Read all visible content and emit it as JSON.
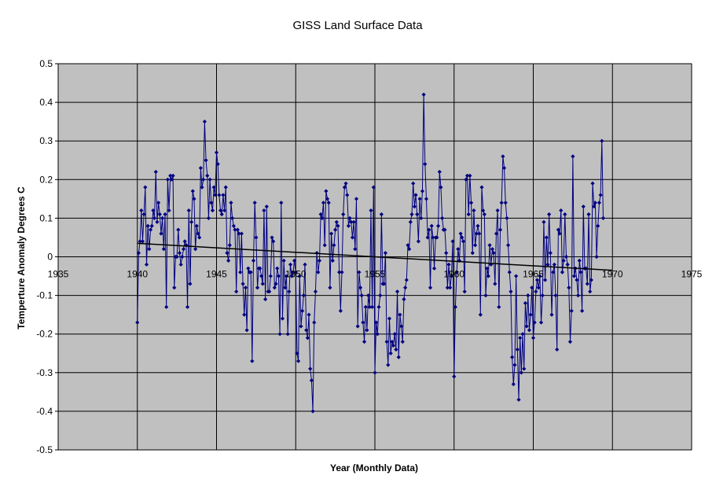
{
  "chart_data": {
    "type": "line",
    "title": "GISS Land Surface Data",
    "xlabel": "Year (Monthly Data)",
    "ylabel": "Temperture Anomaly Degrees C",
    "xlim": [
      1935,
      1975
    ],
    "ylim": [
      -0.5,
      0.5
    ],
    "x_ticks": [
      1935,
      1940,
      1945,
      1950,
      1955,
      1960,
      1965,
      1970,
      1975
    ],
    "y_ticks": [
      -0.5,
      -0.4,
      -0.3,
      -0.2,
      -0.1,
      0,
      0.1,
      0.2,
      0.3,
      0.4,
      0.5
    ],
    "x_tick_labels": [
      "1935",
      "1940",
      "1945",
      "1950",
      "1955",
      "1960",
      "1965",
      "1970",
      "1975"
    ],
    "y_tick_labels": [
      "-0.5",
      "-0.4",
      "-0.3",
      "-0.2",
      "-0.1",
      "0",
      "0.1",
      "0.2",
      "0.3",
      "0.4",
      "0.5"
    ],
    "grid": true,
    "legend": "none",
    "colors": {
      "series": "#000080",
      "trend": "#000000",
      "plot_background": "#c0c0c0",
      "grid": "#000000"
    },
    "series": [
      {
        "x_start": 1940,
        "x_step_years": 0.08333,
        "values": [
          -0.17,
          0.01,
          0.04,
          0.12,
          0.04,
          0.11,
          0.18,
          -0.02,
          0.08,
          0.02,
          0.07,
          0.08,
          0.12,
          0.1,
          0.22,
          0.09,
          0.14,
          0.11,
          0.06,
          0.1,
          0.02,
          0.11,
          -0.13,
          0.2,
          0.12,
          0.21,
          0.2,
          0.21,
          -0.08,
          0.0,
          0.0,
          0.07,
          0.01,
          -0.02,
          0.0,
          0.02,
          0.04,
          0.03,
          -0.13,
          0.12,
          -0.07,
          0.09,
          0.17,
          0.15,
          0.02,
          0.08,
          0.06,
          0.05,
          0.23,
          0.18,
          0.2,
          0.35,
          0.25,
          0.21,
          0.1,
          0.2,
          0.14,
          0.12,
          0.18,
          0.16,
          0.27,
          0.24,
          0.16,
          0.12,
          0.11,
          0.16,
          0.12,
          0.18,
          0.01,
          -0.01,
          0.03,
          0.14,
          0.1,
          0.08,
          0.07,
          -0.09,
          0.07,
          0.06,
          -0.04,
          0.06,
          -0.07,
          -0.15,
          -0.08,
          -0.19,
          -0.03,
          -0.04,
          -0.04,
          -0.27,
          -0.01,
          0.14,
          0.05,
          -0.08,
          -0.03,
          -0.03,
          -0.05,
          -0.07,
          0.12,
          -0.11,
          0.13,
          -0.09,
          -0.09,
          -0.05,
          0.05,
          0.04,
          -0.08,
          -0.07,
          -0.03,
          -0.05,
          -0.2,
          0.14,
          -0.16,
          -0.01,
          -0.08,
          -0.05,
          -0.2,
          -0.09,
          -0.02,
          -0.05,
          -0.04,
          -0.01,
          -0.04,
          -0.25,
          -0.27,
          -0.05,
          -0.18,
          -0.14,
          -0.1,
          -0.02,
          -0.19,
          -0.21,
          -0.15,
          -0.29,
          -0.32,
          -0.4,
          -0.17,
          -0.09,
          0.01,
          -0.04,
          -0.01,
          0.11,
          0.1,
          0.14,
          0.03,
          0.17,
          0.15,
          0.14,
          -0.08,
          0.06,
          -0.01,
          0.03,
          0.07,
          0.09,
          0.08,
          -0.04,
          -0.14,
          -0.04,
          0.11,
          0.18,
          0.19,
          0.16,
          0.08,
          0.1,
          0.09,
          0.05,
          0.09,
          0.02,
          0.15,
          -0.18,
          -0.04,
          -0.08,
          -0.1,
          -0.17,
          -0.22,
          -0.13,
          -0.19,
          -0.1,
          -0.13,
          0.12,
          -0.13,
          0.18,
          -0.3,
          -0.17,
          -0.2,
          -0.13,
          -0.1,
          0.11,
          -0.07,
          -0.07,
          0.01,
          -0.22,
          -0.28,
          -0.16,
          -0.25,
          -0.22,
          -0.23,
          -0.2,
          -0.24,
          -0.09,
          -0.26,
          -0.15,
          -0.18,
          -0.22,
          -0.11,
          -0.08,
          -0.06,
          0.03,
          0.02,
          0.09,
          0.11,
          0.19,
          0.13,
          0.16,
          0.11,
          0.04,
          0.15,
          0.1,
          0.17,
          0.42,
          0.24,
          0.15,
          0.05,
          0.07,
          -0.08,
          0.08,
          0.05,
          -0.03,
          0.05,
          0.05,
          0.08,
          0.22,
          0.18,
          0.1,
          0.07,
          0.07,
          0.01,
          -0.08,
          -0.02,
          -0.08,
          -0.05,
          0.04,
          -0.31,
          -0.13,
          -0.04,
          0.02,
          -0.01,
          0.06,
          0.05,
          0.04,
          -0.09,
          0.2,
          0.21,
          0.11,
          0.21,
          0.14,
          0.01,
          0.12,
          0.03,
          0.06,
          0.08,
          0.06,
          -0.15,
          0.18,
          0.12,
          0.11,
          -0.1,
          -0.03,
          -0.05,
          0.03,
          -0.02,
          0.02,
          0.01,
          -0.07,
          0.06,
          0.12,
          -0.13,
          0.07,
          0.14,
          0.26,
          0.23,
          0.14,
          0.1,
          0.03,
          -0.04,
          -0.09,
          -0.26,
          -0.33,
          -0.28,
          -0.05,
          -0.24,
          -0.37,
          -0.21,
          -0.3,
          -0.2,
          -0.29,
          -0.12,
          -0.18,
          -0.1,
          -0.19,
          -0.15,
          -0.08,
          -0.21,
          -0.17,
          -0.09,
          -0.06,
          -0.08,
          -0.05,
          -0.17,
          -0.1,
          0.09,
          -0.06,
          0.05,
          -0.02,
          0.11,
          0.01,
          -0.15,
          -0.04,
          -0.02,
          -0.1,
          -0.24,
          0.07,
          0.06,
          0.12,
          -0.04,
          -0.01,
          0.11,
          0.0,
          -0.02,
          -0.08,
          -0.22,
          -0.14,
          0.26,
          -0.05,
          -0.03,
          -0.06,
          -0.1,
          -0.01,
          -0.04,
          -0.14,
          0.13,
          -0.03,
          -0.03,
          -0.07,
          0.11,
          -0.09,
          -0.06,
          0.19,
          0.13,
          0.14,
          0.0,
          0.08,
          0.14,
          0.16,
          0.3,
          0.1
        ]
      }
    ],
    "trendline": {
      "x": [
        1940,
        1970
      ],
      "y": [
        0.035,
        -0.035
      ]
    }
  }
}
